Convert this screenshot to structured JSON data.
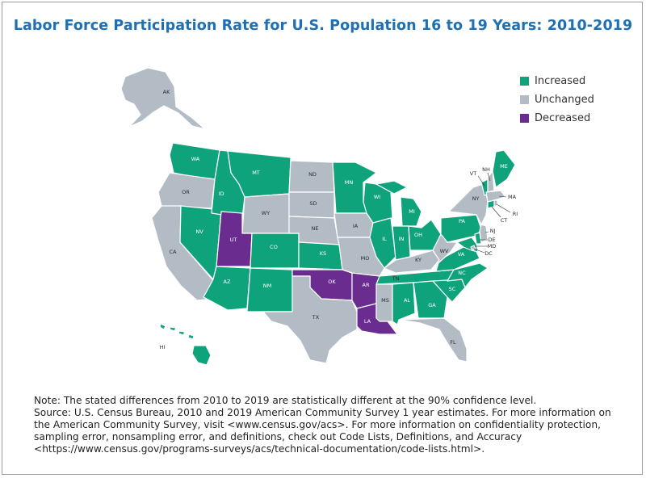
{
  "title": "Labor Force Participation Rate for U.S. Population 16 to 19 Years: 2010-2019",
  "colors": {
    "increased": "#0fa37c",
    "unchanged": "#b3bcc5",
    "decreased": "#6b2c8f"
  },
  "legend": [
    {
      "key": "increased",
      "label": "Increased"
    },
    {
      "key": "unchanged",
      "label": "Unchanged"
    },
    {
      "key": "decreased",
      "label": "Decreased"
    }
  ],
  "states": [
    {
      "abbr": "AK",
      "status": "unchanged"
    },
    {
      "abbr": "HI",
      "status": "increased"
    },
    {
      "abbr": "WA",
      "status": "increased"
    },
    {
      "abbr": "OR",
      "status": "unchanged"
    },
    {
      "abbr": "CA",
      "status": "unchanged"
    },
    {
      "abbr": "NV",
      "status": "increased"
    },
    {
      "abbr": "ID",
      "status": "increased"
    },
    {
      "abbr": "MT",
      "status": "increased"
    },
    {
      "abbr": "WY",
      "status": "unchanged"
    },
    {
      "abbr": "UT",
      "status": "decreased"
    },
    {
      "abbr": "CO",
      "status": "increased"
    },
    {
      "abbr": "AZ",
      "status": "increased"
    },
    {
      "abbr": "NM",
      "status": "increased"
    },
    {
      "abbr": "ND",
      "status": "unchanged"
    },
    {
      "abbr": "SD",
      "status": "unchanged"
    },
    {
      "abbr": "NE",
      "status": "unchanged"
    },
    {
      "abbr": "KS",
      "status": "increased"
    },
    {
      "abbr": "OK",
      "status": "decreased"
    },
    {
      "abbr": "TX",
      "status": "unchanged"
    },
    {
      "abbr": "MN",
      "status": "increased"
    },
    {
      "abbr": "IA",
      "status": "unchanged"
    },
    {
      "abbr": "MO",
      "status": "unchanged"
    },
    {
      "abbr": "AR",
      "status": "decreased"
    },
    {
      "abbr": "LA",
      "status": "decreased"
    },
    {
      "abbr": "WI",
      "status": "increased"
    },
    {
      "abbr": "IL",
      "status": "increased"
    },
    {
      "abbr": "MI",
      "status": "increased"
    },
    {
      "abbr": "IN",
      "status": "increased"
    },
    {
      "abbr": "OH",
      "status": "increased"
    },
    {
      "abbr": "KY",
      "status": "unchanged"
    },
    {
      "abbr": "TN",
      "status": "increased"
    },
    {
      "abbr": "MS",
      "status": "unchanged"
    },
    {
      "abbr": "AL",
      "status": "increased"
    },
    {
      "abbr": "GA",
      "status": "increased"
    },
    {
      "abbr": "FL",
      "status": "unchanged"
    },
    {
      "abbr": "SC",
      "status": "increased"
    },
    {
      "abbr": "NC",
      "status": "increased"
    },
    {
      "abbr": "VA",
      "status": "increased"
    },
    {
      "abbr": "WV",
      "status": "unchanged"
    },
    {
      "abbr": "PA",
      "status": "increased"
    },
    {
      "abbr": "NY",
      "status": "unchanged"
    },
    {
      "abbr": "VT",
      "status": "increased"
    },
    {
      "abbr": "NH",
      "status": "unchanged"
    },
    {
      "abbr": "ME",
      "status": "increased"
    },
    {
      "abbr": "MA",
      "status": "unchanged"
    },
    {
      "abbr": "RI",
      "status": "unchanged"
    },
    {
      "abbr": "CT",
      "status": "increased"
    },
    {
      "abbr": "NJ",
      "status": "unchanged"
    },
    {
      "abbr": "DE",
      "status": "increased"
    },
    {
      "abbr": "MD",
      "status": "increased"
    },
    {
      "abbr": "DC",
      "status": "unchanged"
    }
  ],
  "note": "Note: The stated differences from 2010 to 2019 are statistically different at the 90% confidence level.",
  "source": "Source: U.S. Census Bureau, 2010 and 2019 American Community Survey 1 year estimates. For more information on the American Community Survey, visit <www.census.gov/acs>. For more information on confidentiality protection, sampling error, nonsampling error, and definitions, check out Code Lists, Definitions, and Accuracy <https://www.census.gov/programs-surveys/acs/technical-documentation/code-lists.html>."
}
